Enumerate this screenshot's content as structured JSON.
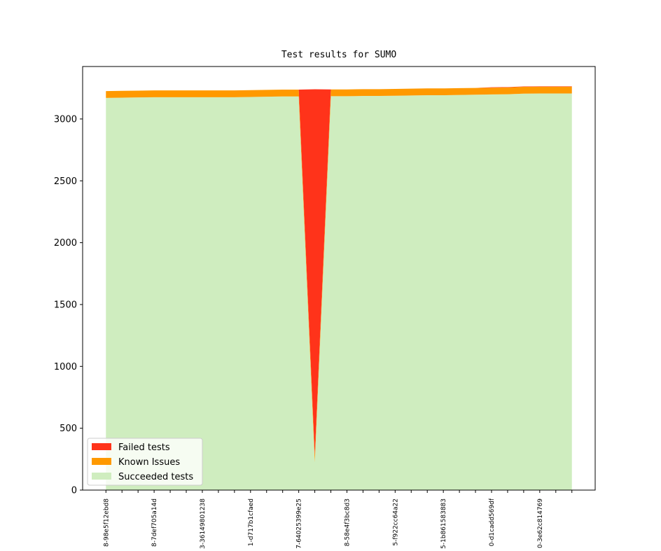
{
  "chart_data": {
    "type": "stacked_area",
    "title": "Test results for SUMO",
    "categories": [
      "8-98e5f12ebd8",
      null,
      null,
      "8-7def705a14d",
      null,
      null,
      "3-36149801238",
      null,
      null,
      "1-d717b1cfaed",
      null,
      null,
      "7-64025399e25",
      null,
      null,
      "8-58e4f3bc8d3",
      null,
      null,
      "5-f922cc64a22",
      null,
      null,
      "5-1b861583883",
      null,
      null,
      "0-d1cadd569df",
      null,
      null,
      "0-3e62c814769",
      null,
      null
    ],
    "series": [
      {
        "name": "Failed tests",
        "color": "#ff331a",
        "values": [
          0,
          0,
          0,
          0,
          0,
          0,
          0,
          0,
          0,
          0,
          0,
          0,
          0,
          2959,
          0,
          0,
          0,
          0,
          0,
          0,
          0,
          0,
          0,
          0,
          3,
          3,
          3,
          3,
          3,
          3
        ]
      },
      {
        "name": "Known Issues",
        "color": "#ff9900",
        "values": [
          55,
          55,
          55,
          55,
          55,
          55,
          55,
          55,
          55,
          55,
          55,
          55,
          55,
          55,
          55,
          55,
          55,
          55,
          55,
          55,
          55,
          55,
          55,
          55,
          55,
          55,
          55,
          55,
          55,
          55
        ]
      },
      {
        "name": "Succeeded tests",
        "color": "#cfedbf",
        "values": [
          3170,
          3172,
          3174,
          3176,
          3176,
          3176,
          3176,
          3176,
          3176,
          3178,
          3180,
          3182,
          3182,
          226,
          3184,
          3184,
          3186,
          3186,
          3188,
          3190,
          3192,
          3192,
          3194,
          3196,
          3198,
          3200,
          3205,
          3206,
          3206,
          3206
        ]
      }
    ],
    "ylim": [
      0,
      3424
    ],
    "yticks": [
      0,
      500,
      1000,
      1500,
      2000,
      2500,
      3000
    ],
    "legend": "lower left"
  }
}
